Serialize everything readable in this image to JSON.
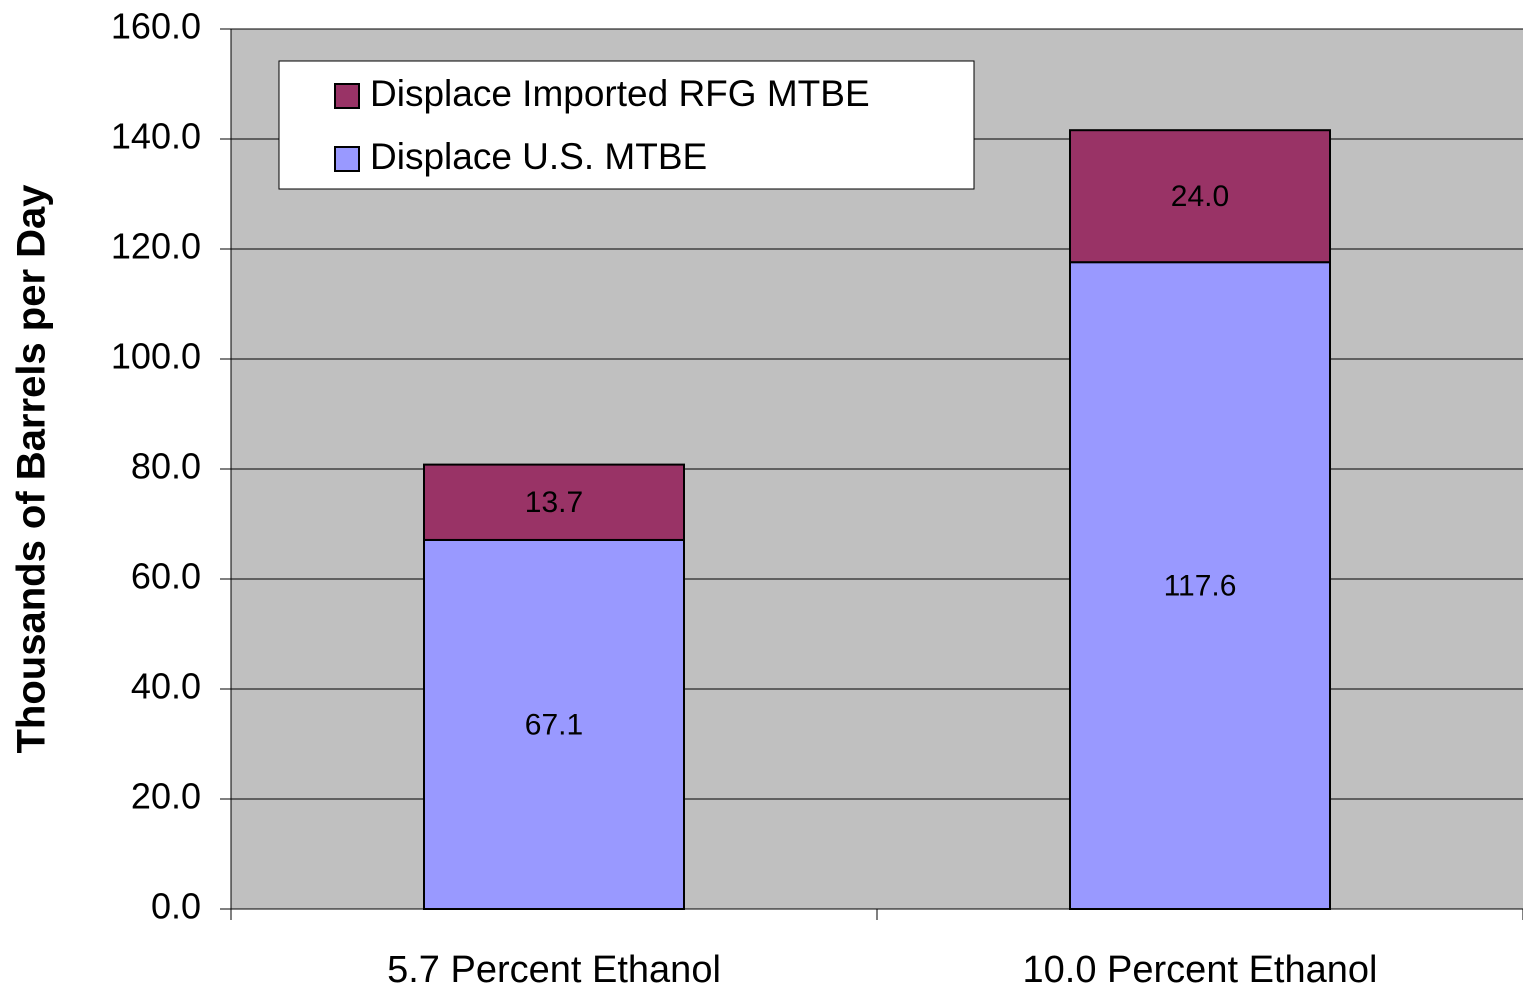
{
  "chart_data": {
    "type": "stacked-bar",
    "y_label": "Thousands of Barrels per Day",
    "categories": [
      "5.7 Percent Ethanol",
      "10.0 Percent Ethanol"
    ],
    "series": [
      {
        "name": "Displace U.S. MTBE",
        "color": "#9999ff",
        "values": [
          67.1,
          117.6
        ]
      },
      {
        "name": "Displace Imported RFG MTBE",
        "color": "#993366",
        "values": [
          13.7,
          24.0
        ],
        "value_labels": [
          "13.7",
          "24.0"
        ]
      }
    ],
    "ylim": [
      0,
      160
    ],
    "yticks": [
      {
        "value": 0,
        "label": "0.0"
      },
      {
        "value": 20,
        "label": "20.0"
      },
      {
        "value": 40,
        "label": "40.0"
      },
      {
        "value": 60,
        "label": "60.0"
      },
      {
        "value": 80,
        "label": "80.0"
      },
      {
        "value": 100,
        "label": "100.0"
      },
      {
        "value": 120,
        "label": "120.0"
      },
      {
        "value": 140,
        "label": "140.0"
      },
      {
        "value": 160,
        "label": "160.0"
      }
    ],
    "grid": true,
    "legend": "upper left"
  }
}
